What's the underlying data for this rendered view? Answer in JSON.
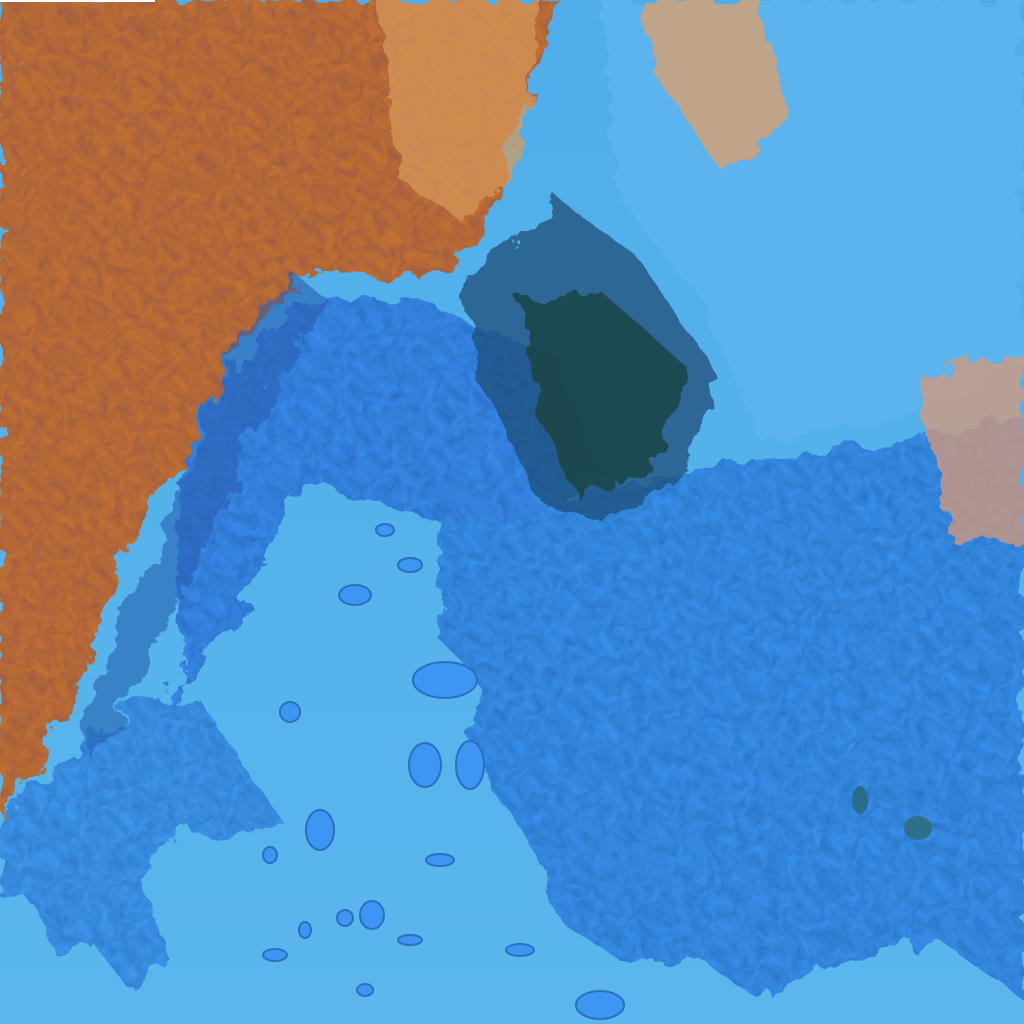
{
  "image": {
    "kind": "false-color satellite image",
    "colors": {
      "sea": "#52b0ea",
      "sea_deep": "#3d9fe6",
      "land_lowland": "#3a8ff0",
      "land_bright": "#2f86f2",
      "mountain_land": "#c8732a",
      "mountain_dark": "#1d4a3a",
      "cloud_pale": "#e8a88a",
      "shadow": "#0e2a55"
    }
  }
}
